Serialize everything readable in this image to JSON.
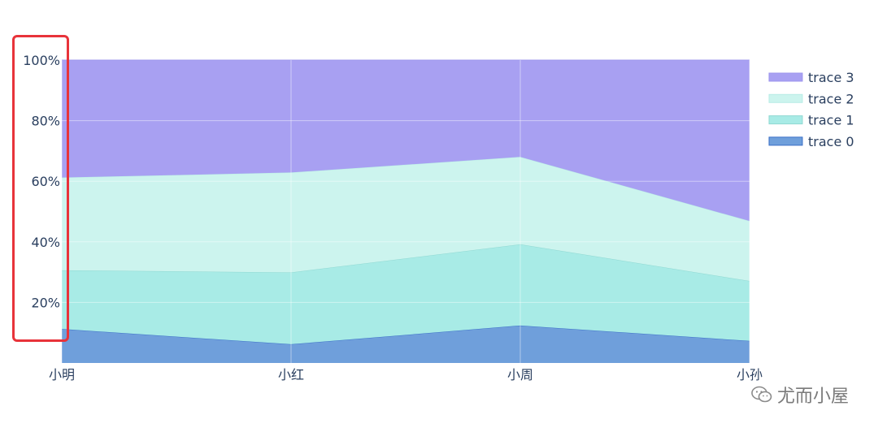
{
  "chart_data": {
    "type": "area",
    "stackgroup": "percent",
    "categories": [
      "小明",
      "小红",
      "小周",
      "小孙"
    ],
    "series": [
      {
        "name": "trace 0",
        "values": [
          11,
          6,
          12,
          7
        ],
        "color": "#6f9fdb",
        "line": "#3b6fc7"
      },
      {
        "name": "trace 1",
        "values": [
          19,
          23,
          26,
          19
        ],
        "color": "#a8ebe6",
        "line": "#8fd8d2"
      },
      {
        "name": "trace 2",
        "values": [
          30,
          32,
          28,
          19
        ],
        "color": "#ccf4ee",
        "line": "#b9ece6"
      },
      {
        "name": "trace 3",
        "values": [
          38,
          36,
          31,
          51
        ],
        "color": "#a8a0f2",
        "line": "#9e96ee"
      }
    ],
    "y_ticks": [
      "20%",
      "40%",
      "60%",
      "80%",
      "100%"
    ],
    "ylim": [
      0,
      100
    ],
    "grid": true,
    "legend_placement": "top-right"
  },
  "highlight": {
    "color": "#e8333a"
  },
  "watermark": {
    "text": "尤而小屋",
    "icon": "wechat-icon"
  }
}
